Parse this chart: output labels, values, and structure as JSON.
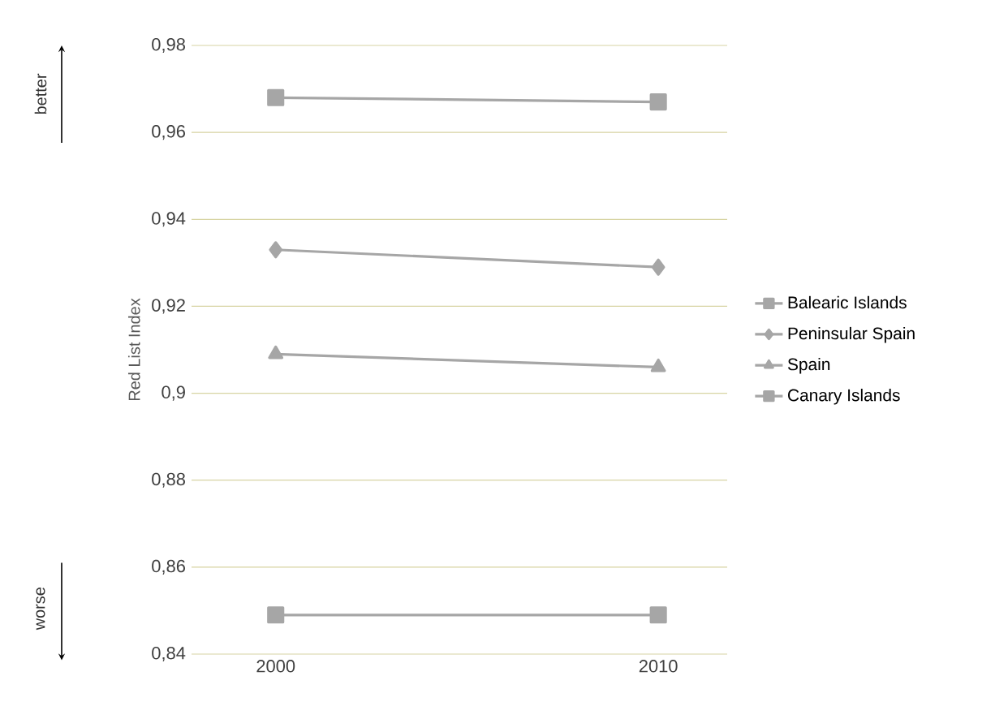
{
  "chart_data": {
    "type": "line",
    "ylabel": "Red List Index",
    "categories": [
      "2000",
      "2010"
    ],
    "series": [
      {
        "name": "Balearic Islands",
        "color": "#a6a6a6",
        "marker": "square",
        "values": [
          0.968,
          0.967
        ]
      },
      {
        "name": "Peninsular Spain",
        "color": "#a6a6a6",
        "marker": "diamond",
        "values": [
          0.933,
          0.929
        ]
      },
      {
        "name": "Spain",
        "color": "#a6a6a6",
        "marker": "triangle",
        "values": [
          0.909,
          0.906
        ]
      },
      {
        "name": "Canary Islands",
        "color": "#a6a6a6",
        "marker": "square",
        "values": [
          0.849,
          0.849
        ]
      }
    ],
    "ylim": [
      0.84,
      0.98
    ],
    "yticks": [
      {
        "value": 0.84,
        "label": "0,84"
      },
      {
        "value": 0.86,
        "label": "0,86"
      },
      {
        "value": 0.88,
        "label": "0,88"
      },
      {
        "value": 0.9,
        "label": "0,9"
      },
      {
        "value": 0.92,
        "label": "0,92"
      },
      {
        "value": 0.94,
        "label": "0,94"
      },
      {
        "value": 0.96,
        "label": "0,96"
      },
      {
        "value": 0.98,
        "label": "0,98"
      }
    ],
    "grid": "y",
    "legend": "right",
    "line_style": "solid",
    "annotations": [
      "better",
      "worse"
    ]
  }
}
